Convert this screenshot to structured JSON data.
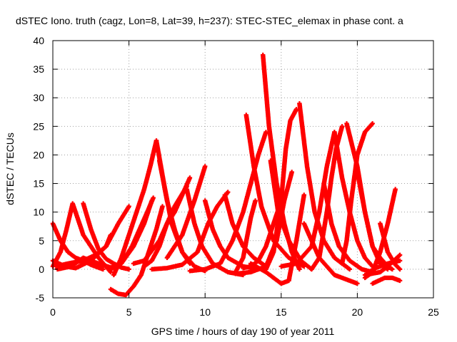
{
  "chart_data": {
    "type": "scatter",
    "title": "dSTEC Iono. truth (cagz, Lon=8, Lat=39, h=237): STEC-STEC_elemax in phase cont. a",
    "xlabel": "GPS time / hours of day 190 of year 2011",
    "ylabel": "dSTEC  / TECUs",
    "xlim": [
      0,
      25
    ],
    "ylim": [
      -5,
      40
    ],
    "xticks": [
      "0",
      "5",
      "10",
      "15",
      "20",
      "25"
    ],
    "yticks": [
      "-5",
      "0",
      "5",
      "10",
      "15",
      "20",
      "25",
      "30",
      "35",
      "40"
    ],
    "grid": true,
    "legend": "none",
    "marker": "+",
    "color": "#ff0000",
    "series": [
      {
        "x": [
          0.0,
          0.5,
          1.0,
          1.5,
          2.0,
          2.5,
          3.0,
          3.3
        ],
        "y": [
          8,
          5,
          3,
          2,
          1.5,
          0.8,
          0.3,
          0
        ]
      },
      {
        "x": [
          0.0,
          0.8,
          1.5,
          2.5,
          3.5,
          4.3,
          5.0
        ],
        "y": [
          1.5,
          0.5,
          0.2,
          1.5,
          4,
          8,
          11
        ]
      },
      {
        "x": [
          0.0,
          0.5,
          0.9,
          1.3,
          2.0,
          3.0,
          3.8
        ],
        "y": [
          0.5,
          3,
          7,
          11.5,
          6,
          2,
          -0.5
        ]
      },
      {
        "x": [
          0.3,
          1.2,
          2.0,
          3.0,
          3.8,
          4.5,
          5.3,
          6.0,
          6.5
        ],
        "y": [
          0,
          0.5,
          2,
          1,
          0.3,
          1,
          4,
          8,
          12
        ]
      },
      {
        "x": [
          2.0,
          2.5,
          3.0,
          3.5,
          4.0,
          4.5,
          5.0
        ],
        "y": [
          11.5,
          7,
          3.5,
          1.8,
          1,
          0.3,
          0
        ]
      },
      {
        "x": [
          0.2,
          1.0,
          2.0,
          2.8,
          3.5,
          3.8
        ],
        "y": [
          0.5,
          1,
          1.5,
          2.5,
          4,
          6
        ]
      },
      {
        "x": [
          3.8,
          4.3,
          4.8,
          5.3,
          5.8,
          6.3,
          6.8,
          7.2
        ],
        "y": [
          -3.5,
          -4.3,
          -4.5,
          -3,
          -1,
          3,
          7,
          11
        ]
      },
      {
        "x": [
          3.8,
          4.5,
          5.2,
          5.7,
          6.2,
          6.6
        ],
        "y": [
          0,
          1,
          4,
          7,
          10,
          12.5
        ]
      },
      {
        "x": [
          4.0,
          4.5,
          5.0,
          5.5,
          6.0,
          6.4,
          6.8
        ],
        "y": [
          -1,
          2,
          6,
          10,
          14,
          18,
          22.5
        ]
      },
      {
        "x": [
          6.0,
          6.5,
          7.0,
          7.5,
          8.0,
          8.5,
          9.0
        ],
        "y": [
          0.5,
          1.5,
          4,
          8,
          10,
          13,
          16
        ]
      },
      {
        "x": [
          6.8,
          7.3,
          7.8,
          8.5,
          9.3,
          10.0
        ],
        "y": [
          22.5,
          15,
          8,
          3,
          0.5,
          -0.3
        ]
      },
      {
        "x": [
          5.3,
          6.0,
          7.0,
          8.0,
          8.8
        ],
        "y": [
          1,
          1.5,
          5,
          11,
          14.5
        ]
      },
      {
        "x": [
          7.0,
          7.5,
          8.0,
          8.5,
          9.0
        ],
        "y": [
          19,
          12,
          7,
          3,
          1
        ]
      },
      {
        "x": [
          6.5,
          7.5,
          8.5,
          9.5,
          10.2,
          10.8,
          11.5
        ],
        "y": [
          0,
          0.2,
          0.8,
          3,
          8,
          11,
          13.5
        ]
      },
      {
        "x": [
          8.8,
          9.3,
          9.8,
          10.5,
          11.5,
          12.5
        ],
        "y": [
          14,
          8,
          4,
          1,
          -0.5,
          -1
        ]
      },
      {
        "x": [
          7.5,
          8.5,
          9.3,
          10.0
        ],
        "y": [
          2,
          6,
          12,
          18
        ]
      },
      {
        "x": [
          10.0,
          10.5,
          11.0,
          11.5,
          12.5,
          13.5
        ],
        "y": [
          12,
          7,
          4,
          2,
          0.5,
          0
        ]
      },
      {
        "x": [
          9.0,
          10.0,
          11.0,
          11.8,
          12.5,
          13.0,
          13.5,
          14.0
        ],
        "y": [
          -0.3,
          0,
          1,
          5,
          10,
          15,
          20,
          24
        ]
      },
      {
        "x": [
          11.3,
          11.8,
          12.5,
          13.2,
          14.0
        ],
        "y": [
          13,
          8,
          4,
          2,
          0.5
        ]
      },
      {
        "x": [
          12.0,
          12.5,
          13.0,
          13.3
        ],
        "y": [
          -0.5,
          2,
          9,
          12
        ]
      },
      {
        "x": [
          12.7,
          13.2,
          13.7,
          14.5,
          15.5,
          16.5
        ],
        "y": [
          27,
          18,
          11,
          5,
          2,
          0.5
        ]
      },
      {
        "x": [
          12.5,
          13.0,
          13.5,
          14.0,
          14.5,
          15.0
        ],
        "y": [
          0.2,
          0.5,
          1.5,
          4,
          8,
          12
        ]
      },
      {
        "x": [
          13.8,
          14.2,
          14.7,
          15.2,
          15.7,
          16.2
        ],
        "y": [
          37.5,
          25,
          15,
          8,
          3,
          0
        ]
      },
      {
        "x": [
          12.0,
          13.0,
          14.0,
          14.7,
          15.2,
          15.7
        ],
        "y": [
          -0.8,
          -0.5,
          0.5,
          5,
          12,
          17
        ]
      },
      {
        "x": [
          14.3,
          14.8,
          15.5,
          16.3,
          17.0
        ],
        "y": [
          19,
          10,
          5,
          1.5,
          0
        ]
      },
      {
        "x": [
          14.0,
          14.5,
          15.0,
          15.3,
          15.6,
          16.0
        ],
        "y": [
          0,
          3,
          12,
          21,
          26,
          28
        ]
      },
      {
        "x": [
          13.0,
          14.0,
          15.0,
          15.5,
          16.0,
          16.5
        ],
        "y": [
          1,
          -0.5,
          -2.5,
          -2,
          5,
          13
        ]
      },
      {
        "x": [
          16.2,
          16.7,
          17.2,
          17.8,
          18.5,
          19.5
        ],
        "y": [
          29,
          18,
          10,
          5,
          2,
          0
        ]
      },
      {
        "x": [
          15.0,
          16.0,
          17.0,
          17.5,
          18.0,
          18.5
        ],
        "y": [
          0.5,
          1,
          4,
          10,
          18,
          24
        ]
      },
      {
        "x": [
          16.5,
          17.5,
          18.5,
          19.5,
          20.0
        ],
        "y": [
          8,
          2,
          -1,
          -2,
          -2.5
        ]
      },
      {
        "x": [
          17.8,
          18.3,
          18.8,
          19.5,
          20.3,
          21.0
        ],
        "y": [
          15,
          8,
          4,
          1.5,
          0,
          -0.5
        ]
      },
      {
        "x": [
          17.0,
          17.5,
          18.0,
          18.3,
          18.6,
          19.0
        ],
        "y": [
          0,
          2,
          10,
          16,
          21,
          25
        ]
      },
      {
        "x": [
          18.5,
          19.0,
          19.5,
          20.0,
          20.5,
          21.0
        ],
        "y": [
          24,
          16,
          10,
          5,
          2,
          0.5
        ]
      },
      {
        "x": [
          19.0,
          19.3,
          19.6,
          20.0,
          20.5,
          21.0
        ],
        "y": [
          1,
          5,
          12,
          20,
          24,
          25.5
        ]
      },
      {
        "x": [
          19.3,
          20.0,
          20.5,
          21.0,
          21.5,
          22.0
        ],
        "y": [
          25.5,
          18,
          10,
          4,
          1,
          0
        ]
      },
      {
        "x": [
          20.0,
          20.5,
          21.0,
          21.5,
          22.0,
          22.3
        ],
        "y": [
          17,
          10,
          4,
          2,
          0.5,
          0
        ]
      },
      {
        "x": [
          20.5,
          21.0,
          21.5,
          22.0,
          22.5
        ],
        "y": [
          -1.5,
          -0.5,
          3,
          8,
          14
        ]
      },
      {
        "x": [
          21.5,
          22.0,
          22.5,
          22.8
        ],
        "y": [
          8,
          3,
          0.8,
          0
        ]
      },
      {
        "x": [
          20.5,
          21.5,
          22.0,
          22.8
        ],
        "y": [
          -1,
          -0.5,
          0.5,
          2.5
        ]
      },
      {
        "x": [
          21.0,
          21.8,
          22.3,
          22.8
        ],
        "y": [
          -2.5,
          -1.5,
          -1.5,
          -2
        ]
      },
      {
        "x": [
          21.0,
          22.0,
          22.8
        ],
        "y": [
          0,
          1,
          1.5
        ]
      }
    ]
  }
}
